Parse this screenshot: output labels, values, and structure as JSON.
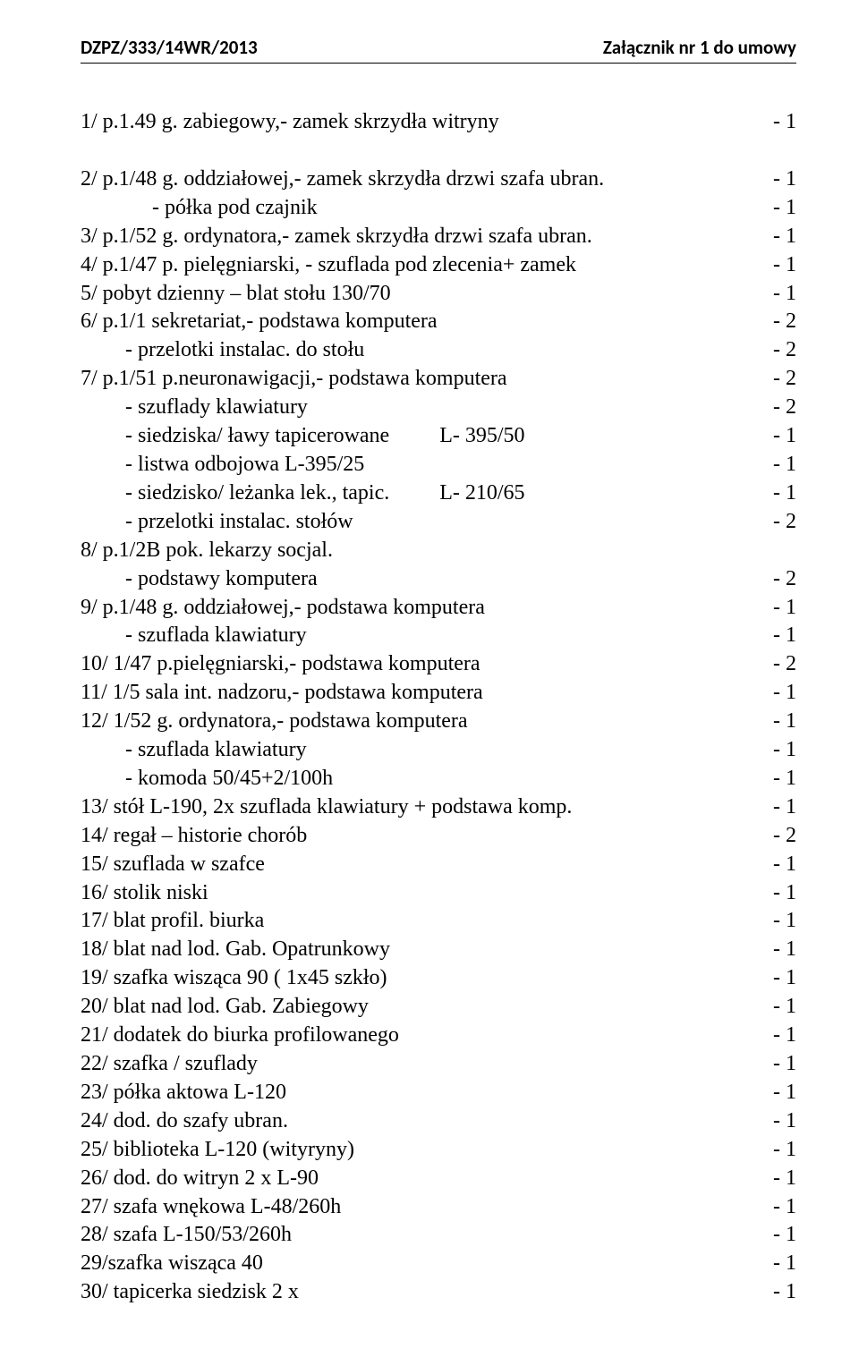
{
  "header": {
    "left": "DZPZ/333/14WR/2013",
    "right": "Załącznik nr 1 do umowy"
  },
  "rows": [
    {
      "label": "1/ p.1.49 g. zabiegowy,- zamek skrzydła witryny",
      "val": "- 1"
    },
    {
      "spacer": true
    },
    {
      "label": "2/ p.1/48 g. oddziałowej,- zamek skrzydła drzwi szafa ubran.",
      "val": "- 1"
    },
    {
      "label": "- półka pod czajnik",
      "indent": 2,
      "val": "- 1"
    },
    {
      "label": "3/ p.1/52 g. ordynatora,- zamek skrzydła drzwi szafa ubran.",
      "val": "- 1"
    },
    {
      "label": "4/ p.1/47 p. pielęgniarski, - szuflada pod zlecenia+ zamek",
      "val": "- 1"
    },
    {
      "label": "5/ pobyt dzienny – blat stołu 130/70",
      "val": "- 1"
    },
    {
      "label": "6/ p.1/1 sekretariat,- podstawa komputera",
      "val": "- 2"
    },
    {
      "label": "- przelotki instalac. do stołu",
      "indent": 1,
      "val": "- 2"
    },
    {
      "label": "7/ p.1/51 p.neuronawigacji,- podstawa komputera",
      "val": "- 2"
    },
    {
      "label": "- szuflady klawiatury",
      "indent": 1,
      "val": "- 2"
    },
    {
      "label": "- siedziska/ ławy tapicerowane",
      "indent": 1,
      "mid": "L- 395/50",
      "val": "- 1"
    },
    {
      "label": "- listwa odbojowa L-395/25",
      "indent": 1,
      "val": "- 1"
    },
    {
      "label": "- siedzisko/ leżanka lek., tapic.",
      "indent": 1,
      "mid": "L- 210/65",
      "val": "- 1"
    },
    {
      "label": "- przelotki instalac. stołów",
      "indent": 1,
      "val": "- 2"
    },
    {
      "label": "8/ p.1/2B pok. lekarzy socjal.",
      "val": ""
    },
    {
      "label": "- podstawy komputera",
      "indent": 1,
      "val": "- 2"
    },
    {
      "label": "9/ p.1/48 g. oddziałowej,- podstawa komputera",
      "val": "- 1"
    },
    {
      "label": "- szuflada klawiatury",
      "indent": 1,
      "val": "- 1"
    },
    {
      "label": "10/ 1/47 p.pielęgniarski,- podstawa komputera",
      "val": "- 2"
    },
    {
      "label": "11/ 1/5 sala int. nadzoru,- podstawa komputera",
      "val": "- 1"
    },
    {
      "label": "12/ 1/52 g. ordynatora,- podstawa komputera",
      "val": "- 1"
    },
    {
      "label": "- szuflada klawiatury",
      "indent": 1,
      "val": "- 1"
    },
    {
      "label": "- komoda 50/45+2/100h",
      "indent": 1,
      "val": "- 1"
    },
    {
      "label": "13/ stół L-190, 2x szuflada klawiatury + podstawa komp.",
      "val": "- 1"
    },
    {
      "label": "14/ regał – historie chorób",
      "val": "- 2"
    },
    {
      "label": "15/ szuflada w szafce",
      "val": "- 1"
    },
    {
      "label": "16/ stolik niski",
      "val": "- 1"
    },
    {
      "label": "17/ blat profil. biurka",
      "val": "- 1"
    },
    {
      "label": "18/ blat nad lod. Gab. Opatrunkowy",
      "val": "- 1"
    },
    {
      "label": "19/ szafka wisząca 90 ( 1x45 szkło)",
      "val": "- 1"
    },
    {
      "label": "20/ blat nad lod. Gab. Zabiegowy",
      "val": "- 1"
    },
    {
      "label": "21/ dodatek do biurka profilowanego",
      "val": "- 1"
    },
    {
      "label": "22/ szafka / szuflady",
      "val": "- 1"
    },
    {
      "label": "23/ półka aktowa L-120",
      "val": "- 1"
    },
    {
      "label": "24/ dod. do szafy ubran.",
      "val": "- 1"
    },
    {
      "label": "25/ biblioteka L-120 (wityryny)",
      "val": "- 1"
    },
    {
      "label": "26/ dod. do witryn 2 x L-90",
      "val": "- 1"
    },
    {
      "label": "27/ szafa wnękowa L-48/260h",
      "val": "- 1"
    },
    {
      "label": "28/ szafa L-150/53/260h",
      "val": "- 1"
    },
    {
      "label": "29/szafka wisząca 40",
      "val": "- 1"
    },
    {
      "label": "30/ tapicerka siedzisk 2 x",
      "val": "- 1"
    }
  ]
}
